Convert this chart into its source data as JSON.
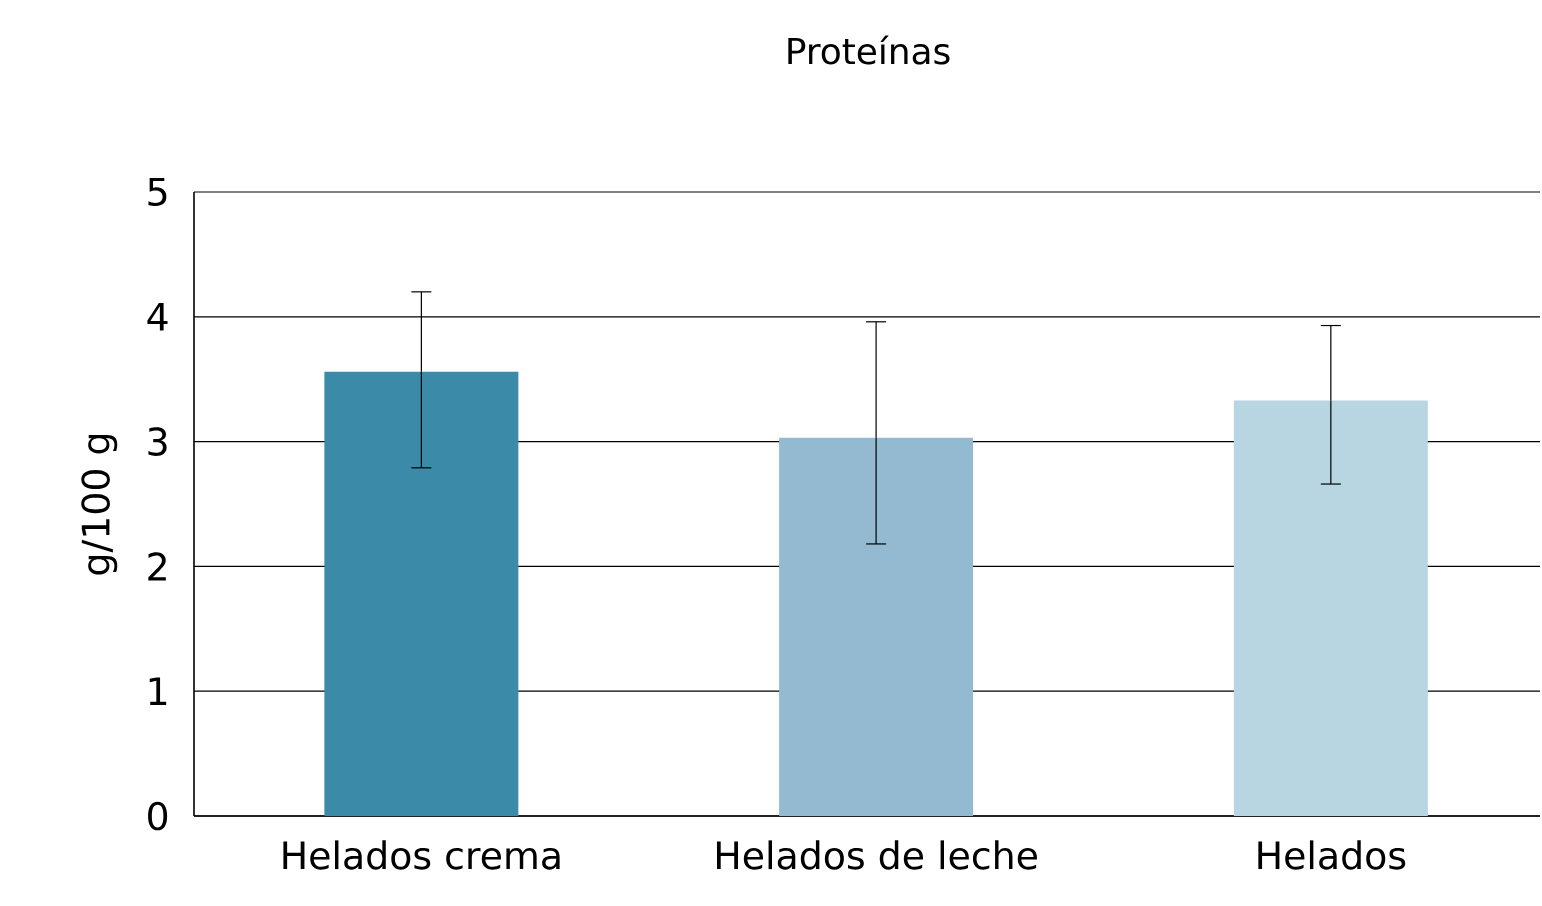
{
  "chart_data": {
    "type": "bar",
    "title": "Proteínas",
    "ylabel": "g/100 g",
    "categories": [
      "Helados crema",
      "Helados de leche",
      "Helados"
    ],
    "values": [
      3.56,
      3.03,
      3.33
    ],
    "colors": [
      "#3a8aa8",
      "#93bad0",
      "#b8d5e2"
    ],
    "errors": [
      [
        2.79,
        4.2
      ],
      [
        2.18,
        3.96
      ],
      [
        2.66,
        3.93
      ]
    ],
    "ylim": [
      0,
      5
    ],
    "yticks": [
      0,
      1,
      2,
      3,
      4,
      5
    ],
    "grid": "y"
  }
}
